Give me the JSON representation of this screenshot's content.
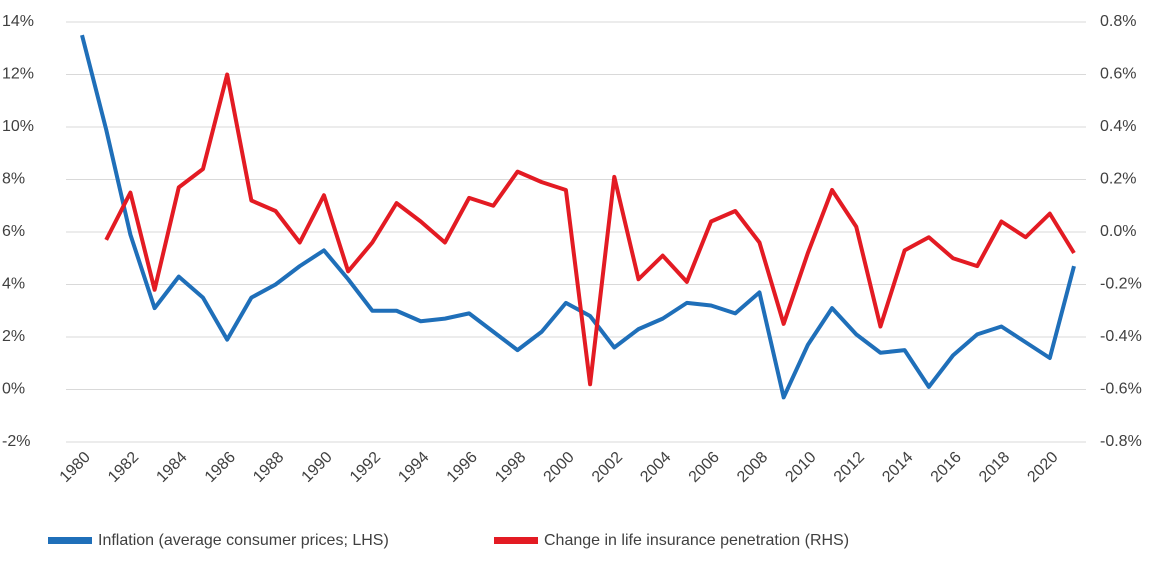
{
  "chart_data": {
    "type": "line",
    "x": [
      1980,
      1981,
      1982,
      1983,
      1984,
      1985,
      1986,
      1987,
      1988,
      1989,
      1990,
      1991,
      1992,
      1993,
      1994,
      1995,
      1996,
      1997,
      1998,
      1999,
      2000,
      2001,
      2002,
      2003,
      2004,
      2005,
      2006,
      2007,
      2008,
      2009,
      2010,
      2011,
      2012,
      2013,
      2014,
      2015,
      2016,
      2017,
      2018,
      2019,
      2020,
      2021
    ],
    "xlim": [
      1980,
      2021
    ],
    "xticks": [
      1980,
      1982,
      1984,
      1986,
      1988,
      1990,
      1992,
      1994,
      1996,
      1998,
      2000,
      2002,
      2004,
      2006,
      2008,
      2010,
      2012,
      2014,
      2016,
      2018,
      2020
    ],
    "ylim": [
      -2,
      14
    ],
    "yticks": [
      {
        "value": -2,
        "label": "-2%"
      },
      {
        "value": 0,
        "label": "0%"
      },
      {
        "value": 2,
        "label": "2%"
      },
      {
        "value": 4,
        "label": "4%"
      },
      {
        "value": 6,
        "label": "6%"
      },
      {
        "value": 8,
        "label": "8%"
      },
      {
        "value": 10,
        "label": "10%"
      },
      {
        "value": 12,
        "label": "12%"
      },
      {
        "value": 14,
        "label": "14%"
      }
    ],
    "y2lim": [
      -0.8,
      0.8
    ],
    "y2ticks": [
      {
        "value": -0.8,
        "label": "-0.8%"
      },
      {
        "value": -0.6,
        "label": "-0.6%"
      },
      {
        "value": -0.4,
        "label": "-0.4%"
      },
      {
        "value": -0.2,
        "label": "-0.2%"
      },
      {
        "value": 0,
        "label": "0.0%"
      },
      {
        "value": 0.2,
        "label": "0.2%"
      },
      {
        "value": 0.4,
        "label": "0.4%"
      },
      {
        "value": 0.6,
        "label": "0.6%"
      },
      {
        "value": 0.8,
        "label": "0.8%"
      }
    ],
    "grid": true,
    "legend": "bottom",
    "series": [
      {
        "name": "Inflation (average consumer prices; LHS)",
        "color": "#1f6fb9",
        "values": [
          13.5,
          9.9,
          5.9,
          3.1,
          4.3,
          3.5,
          1.9,
          3.5,
          4.0,
          4.7,
          5.3,
          4.2,
          3.0,
          3.0,
          2.6,
          2.7,
          2.9,
          2.2,
          1.5,
          2.2,
          3.3,
          2.8,
          1.6,
          2.3,
          2.7,
          3.3,
          3.2,
          2.9,
          3.7,
          -0.3,
          1.7,
          3.1,
          2.1,
          1.4,
          1.5,
          0.1,
          1.3,
          2.1,
          2.4,
          1.8,
          1.2,
          4.7
        ]
      },
      {
        "name": "Change in life insurance penetration (RHS)",
        "color": "#e31b23",
        "axis": "y2",
        "values": [
          null,
          -0.03,
          0.15,
          -0.22,
          0.17,
          0.24,
          0.6,
          0.12,
          0.08,
          -0.04,
          0.14,
          -0.15,
          -0.04,
          0.11,
          0.04,
          -0.04,
          0.13,
          0.1,
          0.23,
          0.19,
          0.16,
          -0.58,
          0.21,
          -0.18,
          -0.09,
          -0.19,
          0.04,
          0.08,
          -0.04,
          -0.35,
          -0.08,
          0.16,
          0.02,
          -0.36,
          -0.07,
          -0.02,
          -0.1,
          -0.13,
          0.04,
          -0.02,
          0.07,
          -0.08
        ]
      }
    ]
  }
}
